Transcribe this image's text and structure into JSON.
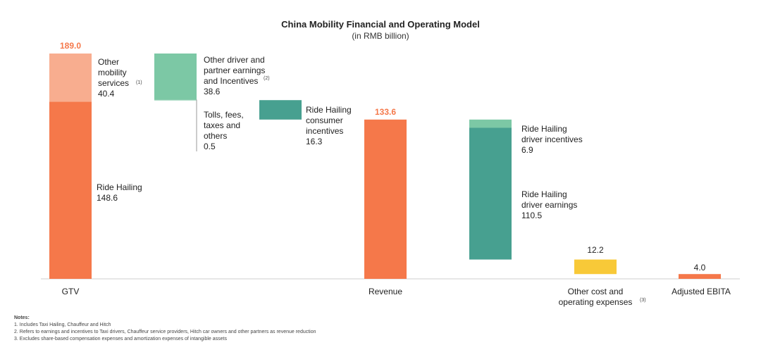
{
  "chart_data": {
    "type": "waterfall",
    "title": "China Mobility Financial and Operating Model",
    "subtitle": "(in RMB billion)",
    "ylim": [
      0,
      189.0
    ],
    "colors": {
      "orange": "#F5784A",
      "light_orange": "#F8AD8F",
      "light_green": "#7CC8A5",
      "teal": "#47A090",
      "yellow": "#F8C938"
    },
    "gtv": {
      "category": "GTV",
      "total_label": "189.0",
      "segments": [
        {
          "name": "Ride Hailing",
          "value": 148.6,
          "label_lines": [
            "Ride Hailing",
            "148.6"
          ]
        },
        {
          "name": "Other mobility services",
          "value": 40.4,
          "label_lines": [
            "Other",
            "mobility",
            "services",
            "40.4"
          ],
          "note": "(1)"
        }
      ]
    },
    "deductions": [
      {
        "name": "Other driver and partner earnings and Incentives",
        "value": 38.6,
        "label_lines": [
          "Other driver and",
          "partner earnings",
          "and Incentives",
          "38.6"
        ],
        "note": "(2)"
      },
      {
        "name": "Tolls, fees, taxes and others",
        "value": 0.5,
        "label_lines": [
          "Tolls, fees,",
          "taxes and",
          "others",
          "0.5"
        ]
      },
      {
        "name": "Ride Hailing consumer incentives",
        "value": 16.3,
        "label_lines": [
          "Ride Hailing",
          "consumer",
          "incentives",
          "16.3"
        ]
      }
    ],
    "revenue": {
      "category": "Revenue",
      "value": 133.6,
      "label": "133.6"
    },
    "driver_costs": [
      {
        "name": "Ride Hailing driver incentives",
        "value": 6.9,
        "label_lines": [
          "Ride Hailing",
          "driver incentives",
          "6.9"
        ]
      },
      {
        "name": "Ride Hailing driver earnings",
        "value": 110.5,
        "label_lines": [
          "Ride Hailing",
          "driver earnings",
          "110.5"
        ]
      }
    ],
    "other_costs": {
      "category_lines": [
        "Other cost and",
        "operating expenses"
      ],
      "note": "(3)",
      "value": 12.2,
      "label": "12.2"
    },
    "ebita": {
      "category": "Adjusted EBITA",
      "value": 4.0,
      "label": "4.0"
    }
  },
  "notes": {
    "heading": "Notes:",
    "items": [
      "1. Includes Taxi Hailing, Chauffeur and Hitch",
      "2. Refers to earnings and incentives to Taxi drivers, Chauffeur service providers, Hitch car owners and other partners as revenue reduction",
      "3. Excludes share-based compensation expenses and amortization expenses of intangible assets"
    ]
  }
}
